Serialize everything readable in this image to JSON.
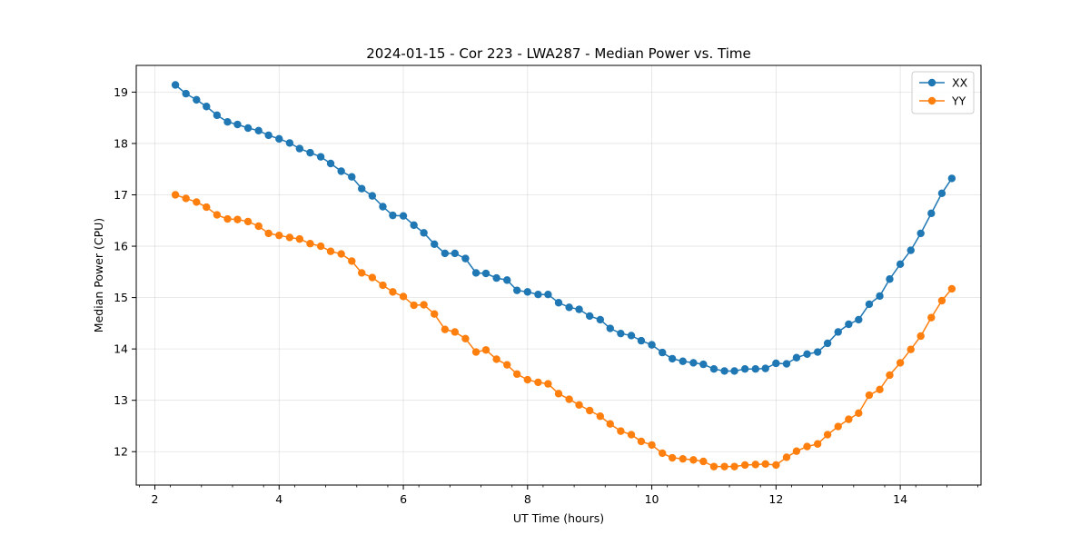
{
  "chart_data": {
    "type": "line",
    "title": "2024-01-15 - Cor 223 - LWA287 - Median Power vs. Time",
    "xlabel": "UT Time (hours)",
    "ylabel": "Median Power (CPU)",
    "xlim": [
      1.7,
      15.3
    ],
    "ylim": [
      11.35,
      19.52
    ],
    "xticks": [
      2,
      4,
      6,
      8,
      10,
      12,
      14
    ],
    "yticks": [
      12,
      13,
      14,
      15,
      16,
      17,
      18,
      19
    ],
    "grid": true,
    "legend_position": "top-right",
    "x": [
      2.33,
      2.5,
      2.67,
      2.83,
      3.0,
      3.17,
      3.33,
      3.5,
      3.67,
      3.83,
      4.0,
      4.17,
      4.33,
      4.5,
      4.67,
      4.83,
      5.0,
      5.17,
      5.33,
      5.5,
      5.67,
      5.83,
      6.0,
      6.17,
      6.33,
      6.5,
      6.67,
      6.83,
      7.0,
      7.17,
      7.33,
      7.5,
      7.67,
      7.83,
      8.0,
      8.17,
      8.33,
      8.5,
      8.67,
      8.83,
      9.0,
      9.17,
      9.33,
      9.5,
      9.67,
      9.83,
      10.0,
      10.17,
      10.33,
      10.5,
      10.67,
      10.83,
      11.0,
      11.17,
      11.33,
      11.5,
      11.67,
      11.83,
      12.0,
      12.17,
      12.33,
      12.5,
      12.67,
      12.83,
      13.0,
      13.17,
      13.33,
      13.5,
      13.67,
      13.83,
      14.0,
      14.17,
      14.33,
      14.5,
      14.67,
      14.83
    ],
    "series": [
      {
        "name": "XX",
        "color": "#1f77b4",
        "values": [
          19.14,
          18.97,
          18.85,
          18.72,
          18.55,
          18.42,
          18.37,
          18.3,
          18.25,
          18.16,
          18.09,
          18.01,
          17.9,
          17.82,
          17.74,
          17.61,
          17.46,
          17.35,
          17.12,
          16.98,
          16.77,
          16.6,
          16.59,
          16.41,
          16.26,
          16.04,
          15.86,
          15.86,
          15.76,
          15.48,
          15.47,
          15.38,
          15.34,
          15.14,
          15.11,
          15.06,
          15.06,
          14.9,
          14.81,
          14.77,
          14.64,
          14.57,
          14.4,
          14.3,
          14.26,
          14.16,
          14.08,
          13.93,
          13.81,
          13.76,
          13.73,
          13.7,
          13.61,
          13.57,
          13.57,
          13.61,
          13.61,
          13.62,
          13.72,
          13.71,
          13.83,
          13.9,
          13.94,
          14.11,
          14.33,
          14.48,
          14.57,
          14.87,
          15.03,
          15.36,
          15.65,
          15.92,
          16.25,
          16.64,
          17.03,
          17.32
        ]
      },
      {
        "name": "YY",
        "color": "#ff7f0e",
        "values": [
          17.0,
          16.93,
          16.86,
          16.76,
          16.61,
          16.53,
          16.52,
          16.48,
          16.39,
          16.25,
          16.21,
          16.17,
          16.14,
          16.05,
          16.0,
          15.9,
          15.85,
          15.71,
          15.48,
          15.39,
          15.24,
          15.11,
          15.02,
          14.85,
          14.86,
          14.68,
          14.38,
          14.33,
          14.2,
          13.94,
          13.98,
          13.8,
          13.69,
          13.51,
          13.4,
          13.35,
          13.32,
          13.13,
          13.02,
          12.91,
          12.8,
          12.69,
          12.54,
          12.4,
          12.33,
          12.2,
          12.13,
          11.97,
          11.88,
          11.86,
          11.84,
          11.81,
          11.71,
          11.71,
          11.71,
          11.74,
          11.75,
          11.76,
          11.74,
          11.89,
          12.01,
          12.1,
          12.15,
          12.33,
          12.49,
          12.63,
          12.75,
          13.1,
          13.21,
          13.49,
          13.73,
          13.99,
          14.25,
          14.61,
          14.94,
          15.17
        ]
      }
    ]
  }
}
